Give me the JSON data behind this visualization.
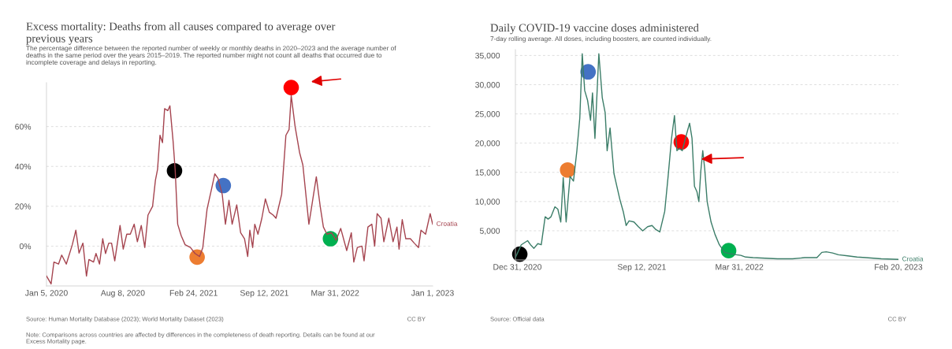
{
  "chart_data": [
    {
      "type": "line",
      "title": "Excess mortality: Deaths from all causes compared to average over previous years",
      "subtitle": "The percentage difference between the reported number of weekly or monthly deaths in 2020–2023 and the average number of deaths in the same period over the years 2015–2019. The reported number might not count all deaths that occurred due to incomplete coverage and delays in reporting.",
      "annotations": [
        "Source: Human Mortality Database (2023); World Mortality Dataset (2023)",
        "CC BY",
        "Note: Comparisons across countries are affected by differences in the completeness of death reporting. Details can be found at our Excess Mortality page."
      ],
      "xlim": [
        "2020-01-05",
        "2023-01-01"
      ],
      "xticks": [
        {
          "value": "2020-01-05",
          "label": "Jan 5, 2020"
        },
        {
          "value": "2020-08-08",
          "label": "Aug 8, 2020"
        },
        {
          "value": "2021-02-24",
          "label": "Feb 24, 2021"
        },
        {
          "value": "2021-09-12",
          "label": "Sep 12, 2021"
        },
        {
          "value": "2022-03-31",
          "label": "Mar 31, 2022"
        },
        {
          "value": "2023-01-01",
          "label": "Jan 1, 2023"
        }
      ],
      "ylim": [
        -20,
        82
      ],
      "yticks": [
        {
          "value": 0,
          "label": "0%"
        },
        {
          "value": 20,
          "label": "20%"
        },
        {
          "value": 40,
          "label": "40%"
        },
        {
          "value": 60,
          "label": "60%"
        }
      ],
      "grid": "y",
      "series": [
        {
          "name": "Croatia",
          "color": "#a5444f",
          "x": [
            "2020-01-05",
            "2020-01-18",
            "2020-01-26",
            "2020-02-08",
            "2020-02-17",
            "2020-03-01",
            "2020-03-18",
            "2020-03-28",
            "2020-04-06",
            "2020-04-17",
            "2020-04-27",
            "2020-05-04",
            "2020-05-17",
            "2020-05-24",
            "2020-06-03",
            "2020-06-12",
            "2020-06-20",
            "2020-06-29",
            "2020-07-07",
            "2020-07-16",
            "2020-07-31",
            "2020-08-09",
            "2020-08-19",
            "2020-08-29",
            "2020-09-09",
            "2020-09-18",
            "2020-09-29",
            "2020-10-09",
            "2020-10-18",
            "2020-10-31",
            "2020-11-08",
            "2020-11-14",
            "2020-11-21",
            "2020-11-28",
            "2020-12-04",
            "2020-12-13",
            "2020-12-19",
            "2020-12-28",
            "2021-01-03",
            "2021-01-10",
            "2021-01-20",
            "2021-01-31",
            "2021-02-15",
            "2021-02-28",
            "2021-03-13",
            "2021-03-22",
            "2021-04-03",
            "2021-04-16",
            "2021-04-25",
            "2021-05-04",
            "2021-05-16",
            "2021-05-25",
            "2021-06-04",
            "2021-06-13",
            "2021-06-26",
            "2021-07-07",
            "2021-07-18",
            "2021-07-27",
            "2021-08-02",
            "2021-08-10",
            "2021-08-16",
            "2021-08-25",
            "2021-09-05",
            "2021-09-15",
            "2021-09-26",
            "2021-10-07",
            "2021-10-15",
            "2021-10-31",
            "2021-11-12",
            "2021-11-21",
            "2021-11-27",
            "2021-12-08",
            "2021-12-21",
            "2021-12-30",
            "2022-01-16",
            "2022-01-24",
            "2022-02-06",
            "2022-02-17",
            "2022-02-26",
            "2022-03-08",
            "2022-03-21",
            "2022-04-03",
            "2022-04-16",
            "2022-05-03",
            "2022-05-16",
            "2022-05-23",
            "2022-06-02",
            "2022-06-15",
            "2022-06-21",
            "2022-07-02",
            "2022-07-13",
            "2022-07-21",
            "2022-07-28",
            "2022-08-08",
            "2022-08-16",
            "2022-08-30",
            "2022-09-11",
            "2022-09-22",
            "2022-09-28",
            "2022-10-07",
            "2022-10-17",
            "2022-10-30",
            "2022-11-10",
            "2022-11-22",
            "2022-11-29",
            "2022-12-12",
            "2022-12-25",
            "2023-01-01"
          ],
          "values": [
            -15,
            -19,
            -8,
            -9,
            -4.5,
            -9,
            0.7,
            8,
            -3.5,
            1.5,
            -15,
            -6.7,
            -8,
            -3.7,
            -9,
            3.7,
            -3.7,
            1.5,
            1.5,
            -7.4,
            10.4,
            -1.5,
            6,
            6,
            11,
            2.2,
            10.4,
            -0.7,
            15.6,
            20,
            33,
            38.5,
            55.6,
            51.9,
            69,
            68,
            70.4,
            52.6,
            37.8,
            11,
            5.2,
            0.7,
            -0.7,
            -3.7,
            -5.2,
            -0.7,
            18.5,
            28.9,
            36.3,
            34,
            25.9,
            11,
            23,
            11,
            20.7,
            6.7,
            3.7,
            -5.2,
            8,
            -0.7,
            11,
            6,
            14,
            23.7,
            17,
            15.6,
            14,
            26,
            55.6,
            58.5,
            75.6,
            60,
            46.7,
            40.7,
            11,
            20,
            34.8,
            20,
            9.6,
            6,
            6.7,
            3,
            8.9,
            -2.2,
            6.7,
            -8,
            -0.7,
            0,
            -7.4,
            9.6,
            11,
            0,
            16.3,
            14,
            2.2,
            14,
            2.2,
            9.6,
            -1.5,
            13.3,
            3.7,
            3.7,
            1.5,
            -0.7,
            8,
            6,
            16.3,
            11
          ]
        },
        {
          "type": "scatter",
          "marker": "circle",
          "x": [
            "2021-01-01",
            "2021-03-06",
            "2021-05-19",
            "2021-11-27",
            "2022-03-18"
          ],
          "values": [
            37.8,
            -5.5,
            30.4,
            79.6,
            3.7
          ],
          "colors": [
            "#000000",
            "#ed7d31",
            "#4472c4",
            "#ff0000",
            "#00b050"
          ]
        }
      ]
    },
    {
      "type": "line",
      "title": "Daily COVID-19 vaccine doses administered",
      "subtitle": "7-day rolling average. All doses, including boosters, are counted individually.",
      "annotations": [
        "Source: Official data",
        "CC BY"
      ],
      "xlim": [
        "2020-12-27",
        "2023-02-20"
      ],
      "xticks": [
        {
          "value": "2020-12-31",
          "label": "Dec 31, 2020"
        },
        {
          "value": "2021-09-12",
          "label": "Sep 12, 2021"
        },
        {
          "value": "2022-03-31",
          "label": "Mar 31, 2022"
        },
        {
          "value": "2023-02-20",
          "label": "Feb 20, 2023"
        }
      ],
      "ylim": [
        0,
        36000
      ],
      "yticks": [
        {
          "value": 5000,
          "label": "5,000"
        },
        {
          "value": 10000,
          "label": "10,000"
        },
        {
          "value": 15000,
          "label": "15,000"
        },
        {
          "value": 20000,
          "label": "20,000"
        },
        {
          "value": 25000,
          "label": "25,000"
        },
        {
          "value": 30000,
          "label": "30,000"
        },
        {
          "value": 35000,
          "label": "35,000"
        }
      ],
      "grid": "y",
      "series": [
        {
          "name": "Croatia",
          "color": "#3b7d68",
          "x": [
            "2020-12-27",
            "2021-01-08",
            "2021-01-21",
            "2021-01-27",
            "2021-02-03",
            "2021-02-11",
            "2021-02-18",
            "2021-02-26",
            "2021-03-04",
            "2021-03-10",
            "2021-03-18",
            "2021-03-24",
            "2021-03-30",
            "2021-04-04",
            "2021-04-10",
            "2021-04-18",
            "2021-04-25",
            "2021-05-02",
            "2021-05-08",
            "2021-05-13",
            "2021-05-18",
            "2021-05-24",
            "2021-05-30",
            "2021-06-03",
            "2021-06-08",
            "2021-06-16",
            "2021-06-23",
            "2021-06-29",
            "2021-07-03",
            "2021-07-09",
            "2021-07-17",
            "2021-07-23",
            "2021-07-29",
            "2021-08-05",
            "2021-08-11",
            "2021-08-17",
            "2021-08-27",
            "2021-09-05",
            "2021-09-14",
            "2021-09-24",
            "2021-10-03",
            "2021-10-11",
            "2021-10-19",
            "2021-10-29",
            "2021-11-05",
            "2021-11-12",
            "2021-11-18",
            "2021-11-23",
            "2021-11-28",
            "2021-12-04",
            "2021-12-12",
            "2021-12-19",
            "2021-12-24",
            "2021-12-29",
            "2022-01-03",
            "2022-01-07",
            "2022-01-11",
            "2022-01-15",
            "2022-01-19",
            "2022-01-24",
            "2022-02-01",
            "2022-02-09",
            "2022-02-18",
            "2022-03-01",
            "2022-03-12",
            "2022-03-25",
            "2022-04-03",
            "2022-04-13",
            "2022-04-28",
            "2022-05-23",
            "2022-06-17",
            "2022-07-18",
            "2022-08-12",
            "2022-09-06",
            "2022-09-16",
            "2022-09-25",
            "2022-10-08",
            "2022-10-20",
            "2022-11-08",
            "2022-11-27",
            "2022-12-15",
            "2023-01-16",
            "2023-02-20"
          ],
          "values": [
            400,
            2600,
            3300,
            2600,
            2000,
            2800,
            2600,
            7400,
            7000,
            7400,
            9100,
            8700,
            6500,
            14100,
            6500,
            14300,
            13500,
            18700,
            24300,
            35300,
            29000,
            27300,
            23900,
            28600,
            20800,
            35300,
            27800,
            25200,
            18700,
            22600,
            14800,
            12600,
            10400,
            8300,
            5900,
            6700,
            6500,
            5700,
            5000,
            5700,
            5900,
            5200,
            4800,
            8300,
            14300,
            20800,
            24700,
            18700,
            19100,
            18700,
            21300,
            23400,
            20800,
            12600,
            11700,
            10000,
            15200,
            18700,
            15600,
            10000,
            6500,
            4400,
            2600,
            1300,
            1100,
            900,
            800,
            500,
            400,
            300,
            200,
            200,
            400,
            400,
            1300,
            1400,
            1200,
            900,
            700,
            500,
            400,
            200,
            100
          ]
        },
        {
          "type": "scatter",
          "marker": "circle",
          "x": [
            "2021-01-05",
            "2021-04-13",
            "2021-05-25",
            "2021-12-02",
            "2022-03-09"
          ],
          "values": [
            1000,
            15400,
            32200,
            20200,
            1600
          ],
          "colors": [
            "#000000",
            "#ed7d31",
            "#4472c4",
            "#ff0000",
            "#00b050"
          ]
        }
      ]
    }
  ]
}
